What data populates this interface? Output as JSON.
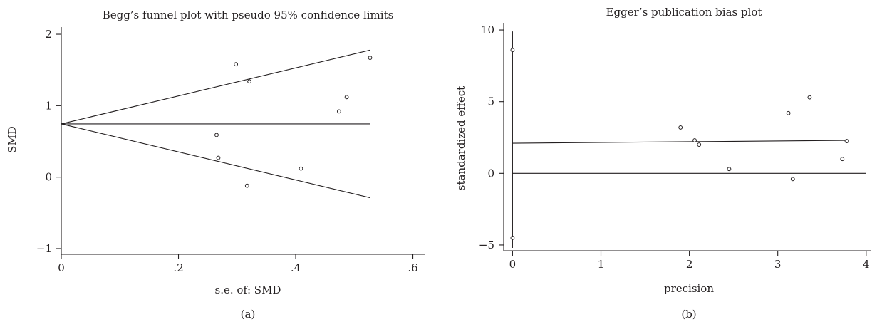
{
  "chart_data": [
    {
      "type": "scatter",
      "panel_label": "(a)",
      "title": "Begg’s funnel plot with pseudo 95% confidence limits",
      "xlabel": "s.e. of: SMD",
      "ylabel": "SMD",
      "xlim": [
        0,
        0.62
      ],
      "ylim": [
        -1.08,
        2.1
      ],
      "xticks": [
        {
          "value": 0,
          "label": "0"
        },
        {
          "value": 0.2,
          "label": ".2"
        },
        {
          "value": 0.4,
          "label": ".4"
        },
        {
          "value": 0.6,
          "label": ".6"
        }
      ],
      "yticks": [
        {
          "value": -1,
          "label": "−1"
        },
        {
          "value": 0,
          "label": "0"
        },
        {
          "value": 1,
          "label": "1"
        },
        {
          "value": 2,
          "label": "2"
        }
      ],
      "points": [
        {
          "x": 0.298,
          "y": 1.58
        },
        {
          "x": 0.321,
          "y": 1.34
        },
        {
          "x": 0.265,
          "y": 0.59
        },
        {
          "x": 0.268,
          "y": 0.27
        },
        {
          "x": 0.317,
          "y": -0.12
        },
        {
          "x": 0.409,
          "y": 0.12
        },
        {
          "x": 0.474,
          "y": 0.92
        },
        {
          "x": 0.487,
          "y": 1.12
        },
        {
          "x": 0.527,
          "y": 1.67
        }
      ],
      "lines": [
        {
          "x": [
            0,
            0.527
          ],
          "y": [
            0.745,
            0.745
          ]
        },
        {
          "x": [
            0,
            0.527
          ],
          "y": [
            0.745,
            1.778
          ]
        },
        {
          "x": [
            0,
            0.527
          ],
          "y": [
            0.745,
            -0.288
          ]
        }
      ]
    },
    {
      "type": "scatter",
      "panel_label": "(b)",
      "title": "Egger’s publication bias plot",
      "xlabel": "precision",
      "ylabel": "standardized effect",
      "xlim": [
        -0.1,
        4.05
      ],
      "ylim": [
        -5.4,
        10.5
      ],
      "xticks": [
        {
          "value": 0,
          "label": "0"
        },
        {
          "value": 1,
          "label": "1"
        },
        {
          "value": 2,
          "label": "2"
        },
        {
          "value": 3,
          "label": "3"
        },
        {
          "value": 4,
          "label": "4"
        }
      ],
      "yticks": [
        {
          "value": -5,
          "label": "−5"
        },
        {
          "value": 0,
          "label": "0"
        },
        {
          "value": 5,
          "label": "5"
        },
        {
          "value": 10,
          "label": "10"
        }
      ],
      "points": [
        {
          "x": 0,
          "y": 8.6
        },
        {
          "x": 0,
          "y": -4.5
        },
        {
          "x": 1.9,
          "y": 3.2
        },
        {
          "x": 2.06,
          "y": 2.3
        },
        {
          "x": 2.11,
          "y": 2.0
        },
        {
          "x": 2.45,
          "y": 0.3
        },
        {
          "x": 3.12,
          "y": 4.2
        },
        {
          "x": 3.17,
          "y": -0.4
        },
        {
          "x": 3.36,
          "y": 5.3
        },
        {
          "x": 3.73,
          "y": 1.0
        },
        {
          "x": 3.78,
          "y": 2.25
        }
      ],
      "lines": [
        {
          "x": [
            0,
            4.0
          ],
          "y": [
            0,
            0
          ]
        },
        {
          "x": [
            0,
            3.8
          ],
          "y": [
            2.1,
            2.3
          ]
        },
        {
          "x": [
            0,
            0
          ],
          "y": [
            -5.2,
            9.9
          ]
        }
      ]
    }
  ]
}
